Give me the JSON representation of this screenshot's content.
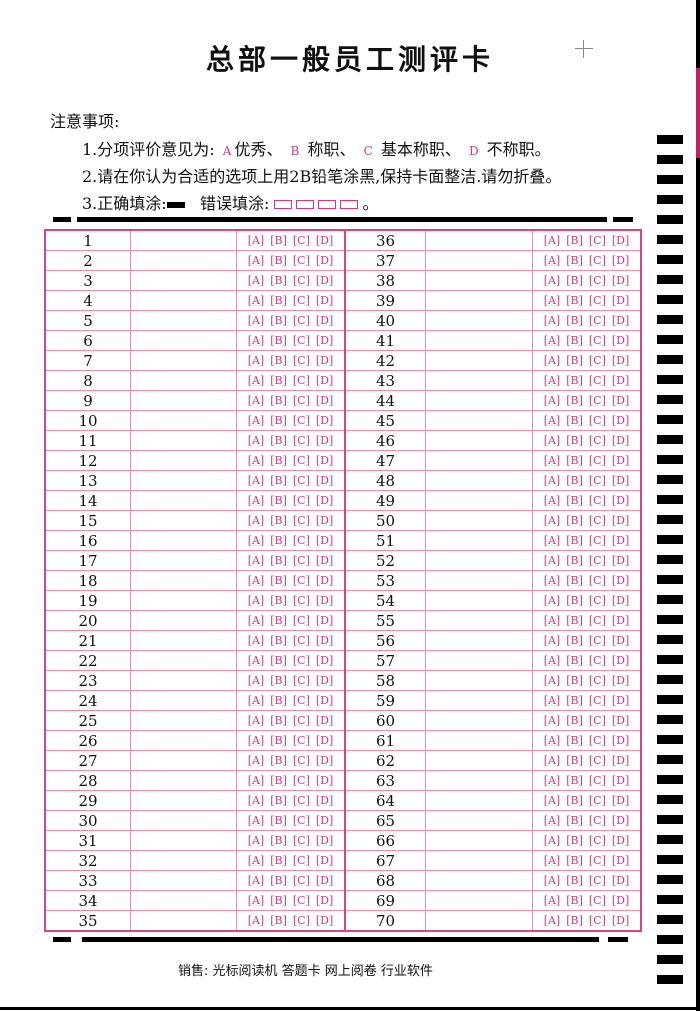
{
  "title": "总部一般员工测评卡",
  "notes": {
    "heading": "注意事项:",
    "line1_prefix": "1.分项评价意见为:",
    "line1_items": [
      {
        "option": "A",
        "label": "优秀、"
      },
      {
        "option": "B",
        "label": " 称职、"
      },
      {
        "option": "C",
        "label": " 基本称职、"
      },
      {
        "option": "D",
        "label": " 不称职。"
      }
    ],
    "line2": "2.请在你认为合适的选项上用2B铅笔涂黑,保持卡面整洁.请勿折叠。",
    "line3_correct": "3.正确填涂:",
    "line3_wrong": "错误填涂:",
    "line3_end": "。"
  },
  "options": [
    "[A]",
    "[B]",
    "[C]",
    "[D]"
  ],
  "rows": [
    [
      1,
      36
    ],
    [
      2,
      37
    ],
    [
      3,
      38
    ],
    [
      4,
      39
    ],
    [
      5,
      40
    ],
    [
      6,
      41
    ],
    [
      7,
      42
    ],
    [
      8,
      43
    ],
    [
      9,
      44
    ],
    [
      10,
      45
    ],
    [
      11,
      46
    ],
    [
      12,
      47
    ],
    [
      13,
      48
    ],
    [
      14,
      49
    ],
    [
      15,
      50
    ],
    [
      16,
      51
    ],
    [
      17,
      52
    ],
    [
      18,
      53
    ],
    [
      19,
      54
    ],
    [
      20,
      55
    ],
    [
      21,
      56
    ],
    [
      22,
      57
    ],
    [
      23,
      58
    ],
    [
      24,
      59
    ],
    [
      25,
      60
    ],
    [
      26,
      61
    ],
    [
      27,
      62
    ],
    [
      28,
      63
    ],
    [
      29,
      64
    ],
    [
      30,
      65
    ],
    [
      31,
      66
    ],
    [
      32,
      67
    ],
    [
      33,
      68
    ],
    [
      34,
      69
    ],
    [
      35,
      70
    ]
  ],
  "footer": "销售:  光标阅读机  答题卡  网上阅卷  行业软件",
  "colors": {
    "accent": "#d6477f",
    "ink": "#000000"
  }
}
